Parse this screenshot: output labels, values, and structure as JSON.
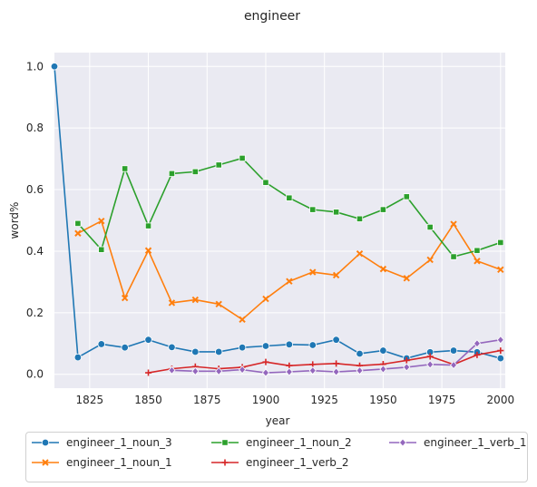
{
  "chart_data": {
    "type": "line",
    "title": "engineer",
    "xlabel": "year",
    "ylabel": "word%",
    "xlim": [
      1810,
      2002
    ],
    "ylim": [
      -0.045,
      1.045
    ],
    "xticks": [
      1825,
      1850,
      1875,
      1900,
      1925,
      1950,
      1975,
      2000
    ],
    "yticks": [
      0.0,
      0.2,
      0.4,
      0.6,
      0.8,
      1.0
    ],
    "xtick_labels": [
      "1825",
      "1850",
      "1875",
      "1900",
      "1925",
      "1950",
      "1975",
      "2000"
    ],
    "ytick_labels": [
      "0.0",
      "0.2",
      "0.4",
      "0.6",
      "0.8",
      "1.0"
    ],
    "grid": true,
    "legend_position": "bottom",
    "series": [
      {
        "name": "engineer_1_noun_3",
        "color": "#1f77b4",
        "marker": "circle",
        "x": [
          1810,
          1820,
          1830,
          1840,
          1850,
          1860,
          1870,
          1880,
          1890,
          1900,
          1910,
          1920,
          1930,
          1940,
          1950,
          1960,
          1970,
          1980,
          1990,
          2000
        ],
        "y": [
          1.0,
          0.055,
          0.098,
          0.087,
          0.112,
          0.088,
          0.073,
          0.073,
          0.087,
          0.092,
          0.097,
          0.095,
          0.112,
          0.067,
          0.077,
          0.052,
          0.072,
          0.077,
          0.072,
          0.052
        ]
      },
      {
        "name": "engineer_1_noun_1",
        "color": "#ff7f0e",
        "marker": "x",
        "x": [
          1820,
          1830,
          1840,
          1850,
          1860,
          1870,
          1880,
          1890,
          1900,
          1910,
          1920,
          1930,
          1940,
          1950,
          1960,
          1970,
          1980,
          1990,
          2000
        ],
        "y": [
          0.458,
          0.498,
          0.248,
          0.402,
          0.232,
          0.242,
          0.228,
          0.178,
          0.245,
          0.302,
          0.332,
          0.322,
          0.392,
          0.342,
          0.312,
          0.372,
          0.488,
          0.368,
          0.34
        ]
      },
      {
        "name": "engineer_1_noun_2",
        "color": "#2ca02c",
        "marker": "square",
        "x": [
          1820,
          1830,
          1840,
          1850,
          1860,
          1870,
          1880,
          1890,
          1900,
          1910,
          1920,
          1930,
          1940,
          1950,
          1960,
          1970,
          1980,
          1990,
          2000
        ],
        "y": [
          0.49,
          0.405,
          0.668,
          0.482,
          0.652,
          0.658,
          0.68,
          0.702,
          0.623,
          0.573,
          0.535,
          0.527,
          0.505,
          0.535,
          0.577,
          0.478,
          0.382,
          0.402,
          0.428
        ]
      },
      {
        "name": "engineer_1_verb_2",
        "color": "#d62728",
        "marker": "plus",
        "x": [
          1850,
          1860,
          1870,
          1880,
          1890,
          1900,
          1910,
          1920,
          1930,
          1940,
          1950,
          1960,
          1970,
          1980,
          1990,
          2000
        ],
        "y": [
          0.005,
          0.018,
          0.025,
          0.018,
          0.023,
          0.04,
          0.028,
          0.032,
          0.035,
          0.028,
          0.033,
          0.045,
          0.058,
          0.032,
          0.063,
          0.077
        ]
      },
      {
        "name": "engineer_1_verb_1",
        "color": "#9467bd",
        "marker": "diamond",
        "x": [
          1860,
          1870,
          1880,
          1890,
          1900,
          1910,
          1920,
          1930,
          1940,
          1950,
          1960,
          1970,
          1980,
          1990,
          2000
        ],
        "y": [
          0.013,
          0.01,
          0.01,
          0.015,
          0.005,
          0.008,
          0.012,
          0.008,
          0.012,
          0.017,
          0.023,
          0.032,
          0.03,
          0.1,
          0.112
        ]
      }
    ],
    "legend_order": [
      [
        "engineer_1_noun_3",
        "engineer_1_noun_2",
        "engineer_1_verb_1"
      ],
      [
        "engineer_1_noun_1",
        "engineer_1_verb_2"
      ]
    ]
  }
}
